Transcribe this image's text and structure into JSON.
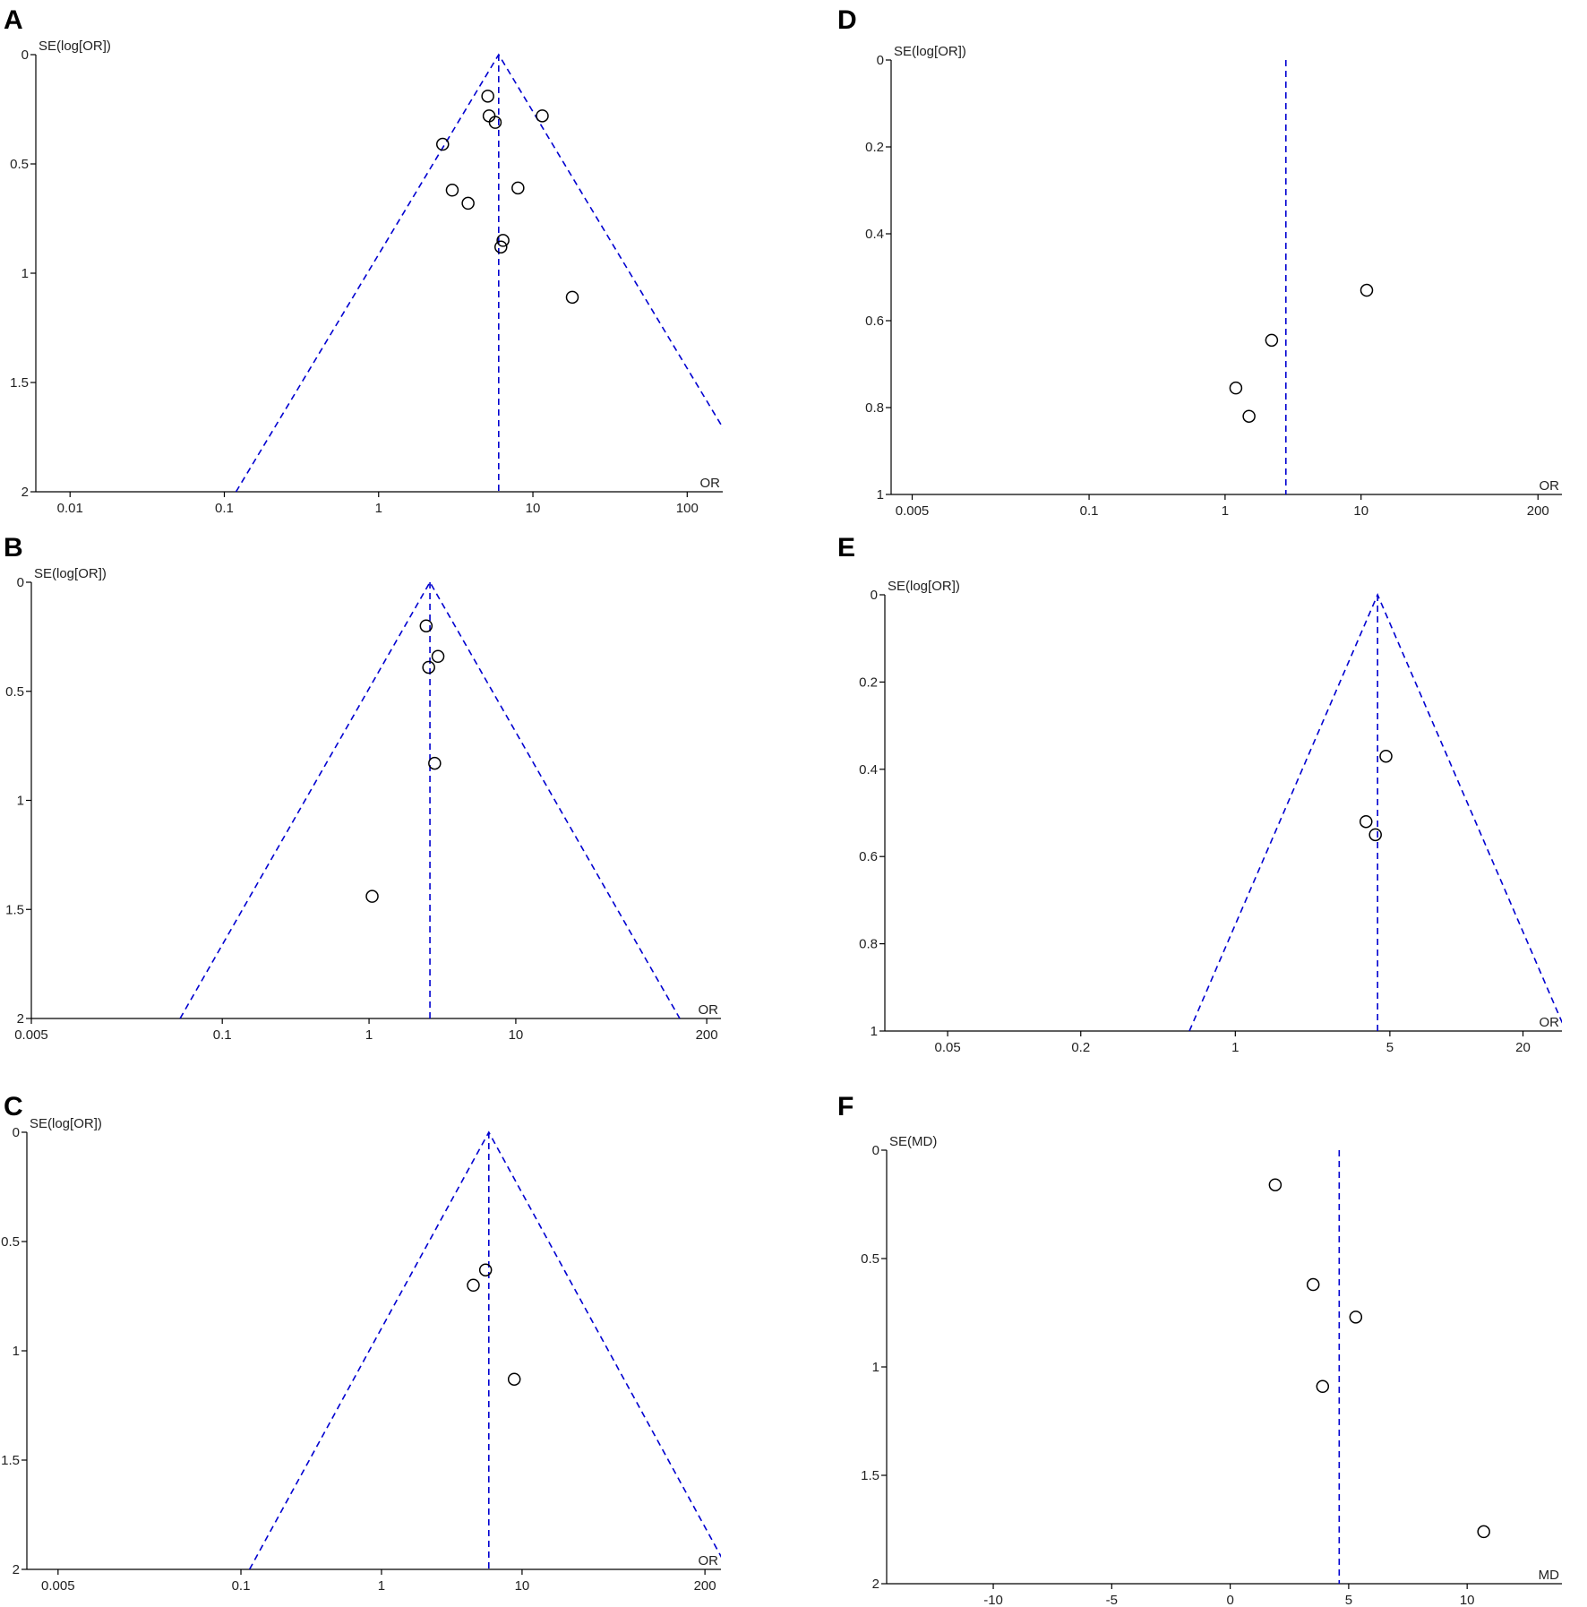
{
  "chart_data": [
    {
      "panel": "A",
      "type": "scatter",
      "ylabel": "SE(log[OR])",
      "xlabel": "OR",
      "xscale": "log",
      "xlim": [
        0.006,
        170
      ],
      "ylim": [
        0,
        2
      ],
      "xticks": [
        0.01,
        0.1,
        1,
        10,
        100
      ],
      "xtick_labels": [
        "0.01",
        "0.1",
        "1",
        "10",
        "100"
      ],
      "yticks": [
        0,
        0.5,
        1,
        1.5,
        2
      ],
      "ytick_labels": [
        "0",
        "0.5",
        "1",
        "1.5",
        "2"
      ],
      "pooled": 6,
      "funnel": true,
      "points": [
        {
          "x": 5.1,
          "y": 0.19
        },
        {
          "x": 5.2,
          "y": 0.28
        },
        {
          "x": 5.7,
          "y": 0.31
        },
        {
          "x": 11.5,
          "y": 0.28
        },
        {
          "x": 2.6,
          "y": 0.41
        },
        {
          "x": 3.0,
          "y": 0.62
        },
        {
          "x": 3.8,
          "y": 0.68
        },
        {
          "x": 8.0,
          "y": 0.61
        },
        {
          "x": 6.4,
          "y": 0.85
        },
        {
          "x": 6.2,
          "y": 0.88
        },
        {
          "x": 18,
          "y": 1.11
        }
      ]
    },
    {
      "panel": "B",
      "type": "scatter",
      "ylabel": "SE(log[OR])",
      "xlabel": "OR",
      "xscale": "log",
      "xlim": [
        0.005,
        250
      ],
      "ylim": [
        0,
        2
      ],
      "xticks": [
        0.005,
        0.1,
        1,
        10,
        200
      ],
      "xtick_labels": [
        "0.005",
        "0.1",
        "1",
        "10",
        "200"
      ],
      "yticks": [
        0,
        0.5,
        1,
        1.5,
        2
      ],
      "ytick_labels": [
        "0",
        "0.5",
        "1",
        "1.5",
        "2"
      ],
      "pooled": 2.6,
      "funnel": true,
      "points": [
        {
          "x": 2.45,
          "y": 0.2
        },
        {
          "x": 2.95,
          "y": 0.34
        },
        {
          "x": 2.55,
          "y": 0.39
        },
        {
          "x": 2.8,
          "y": 0.83
        },
        {
          "x": 1.05,
          "y": 1.44
        }
      ]
    },
    {
      "panel": "C",
      "type": "scatter",
      "ylabel": "SE(log[OR])",
      "xlabel": "OR",
      "xscale": "log",
      "xlim": [
        0.003,
        260
      ],
      "ylim": [
        0,
        2
      ],
      "xticks": [
        0.005,
        0.1,
        1,
        10,
        200
      ],
      "xtick_labels": [
        "0.005",
        "0.1",
        "1",
        "10",
        "200"
      ],
      "yticks": [
        0,
        0.5,
        1,
        1.5,
        2
      ],
      "ytick_labels": [
        "0",
        "0.5",
        "1",
        "1.5",
        "2"
      ],
      "pooled": 5.8,
      "funnel": true,
      "points": [
        {
          "x": 5.5,
          "y": 0.63
        },
        {
          "x": 4.5,
          "y": 0.7
        },
        {
          "x": 8.8,
          "y": 1.13
        }
      ]
    },
    {
      "panel": "D",
      "type": "scatter",
      "ylabel": "SE(log[OR])",
      "xlabel": "OR",
      "xscale": "log",
      "xlim": [
        0.0035,
        300
      ],
      "ylim": [
        0,
        1
      ],
      "xticks": [
        0.005,
        0.1,
        1,
        10,
        200
      ],
      "xtick_labels": [
        "0.005",
        "0.1",
        "1",
        "10",
        "200"
      ],
      "yticks": [
        0,
        0.2,
        0.4,
        0.6,
        0.8,
        1
      ],
      "ytick_labels": [
        "0",
        "0.2",
        "0.4",
        "0.6",
        "0.8",
        "1"
      ],
      "pooled": 2.8,
      "funnel": false,
      "points": [
        {
          "x": 11,
          "y": 0.53
        },
        {
          "x": 2.2,
          "y": 0.645
        },
        {
          "x": 1.2,
          "y": 0.755
        },
        {
          "x": 1.5,
          "y": 0.82
        }
      ]
    },
    {
      "panel": "E",
      "type": "scatter",
      "ylabel": "SE(log[OR])",
      "xlabel": "OR",
      "xscale": "log",
      "xlim": [
        0.026,
        30
      ],
      "ylim": [
        0,
        1
      ],
      "xticks": [
        0.05,
        0.2,
        1,
        5,
        20
      ],
      "xtick_labels": [
        "0.05",
        "0.2",
        "1",
        "5",
        "20"
      ],
      "yticks": [
        0,
        0.2,
        0.4,
        0.6,
        0.8,
        1
      ],
      "ytick_labels": [
        "0",
        "0.2",
        "0.4",
        "0.6",
        "0.8",
        "1"
      ],
      "pooled": 4.4,
      "funnel": true,
      "points": [
        {
          "x": 4.8,
          "y": 0.37
        },
        {
          "x": 3.9,
          "y": 0.52
        },
        {
          "x": 4.3,
          "y": 0.55
        }
      ]
    },
    {
      "panel": "F",
      "type": "scatter",
      "ylabel": "SE(MD)",
      "xlabel": "MD",
      "xscale": "linear",
      "xlim": [
        -14.5,
        14
      ],
      "ylim": [
        0,
        2
      ],
      "xticks": [
        -10,
        -5,
        0,
        5,
        10
      ],
      "xtick_labels": [
        "-10",
        "-5",
        "0",
        "5",
        "10"
      ],
      "yticks": [
        0,
        0.5,
        1,
        1.5,
        2
      ],
      "ytick_labels": [
        "0",
        "0.5",
        "1",
        "1.5",
        "2"
      ],
      "pooled": 4.6,
      "funnel": false,
      "points": [
        {
          "x": 1.9,
          "y": 0.16
        },
        {
          "x": 3.5,
          "y": 0.62
        },
        {
          "x": 5.3,
          "y": 0.77
        },
        {
          "x": 3.9,
          "y": 1.09
        },
        {
          "x": 10.7,
          "y": 1.76
        }
      ]
    }
  ]
}
